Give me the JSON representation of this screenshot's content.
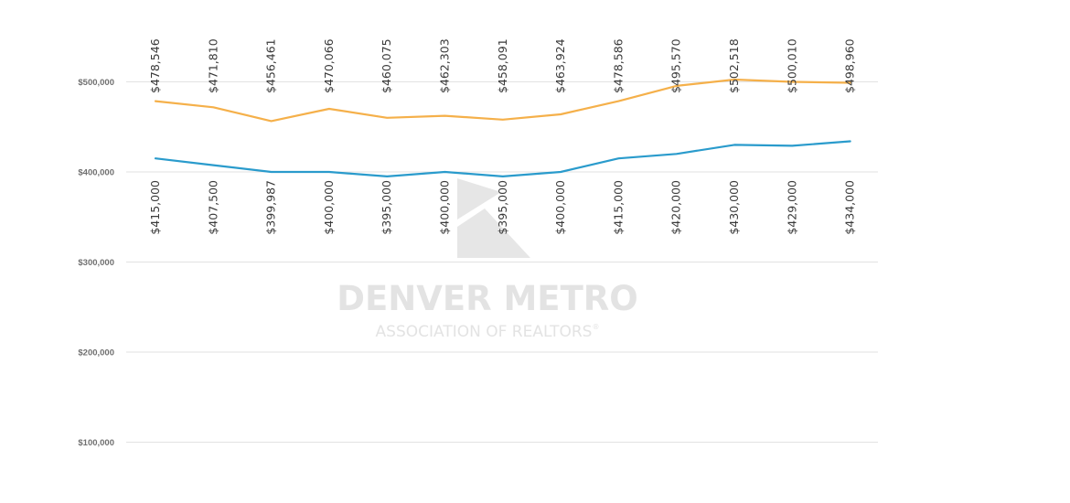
{
  "chart_data": {
    "type": "line",
    "title": "",
    "xlabel": "",
    "ylabel": "",
    "ylim": [
      0,
      500000
    ],
    "y_ticks": [
      {
        "value": 100000,
        "label": "$100,000"
      },
      {
        "value": 200000,
        "label": "$200,000"
      },
      {
        "value": 300000,
        "label": "$300,000"
      },
      {
        "value": 400000,
        "label": "$400,000"
      },
      {
        "value": 500000,
        "label": "$500,000"
      }
    ],
    "grid": true,
    "legend": "none",
    "series": [
      {
        "color": "#f5b04a",
        "label_position": "above",
        "values": [
          478546,
          471810,
          456461,
          470066,
          460075,
          462303,
          458091,
          463924,
          478586,
          495570,
          502518,
          500010,
          498960
        ],
        "labels": [
          "$478,546",
          "$471,810",
          "$456,461",
          "$470,066",
          "$460,075",
          "$462,303",
          "$458,091",
          "$463,924",
          "$478,586",
          "$495,570",
          "$502,518",
          "$500,010",
          "$498,960"
        ]
      },
      {
        "color": "#2a9bcc",
        "label_position": "below",
        "values": [
          415000,
          407500,
          399987,
          400000,
          395000,
          400000,
          395000,
          400000,
          415000,
          420000,
          430000,
          429000,
          434000
        ],
        "labels": [
          "$415,000",
          "$407,500",
          "$399,987",
          "$400,000",
          "$395,000",
          "$400,000",
          "$395,000",
          "$400,000",
          "$415,000",
          "$420,000",
          "$430,000",
          "$429,000",
          "$434,000"
        ]
      }
    ]
  },
  "watermark": {
    "line1": "DENVER METRO",
    "line2": "ASSOCIATION OF REALTORS",
    "registered_mark": "®",
    "color": "#e3e3e3"
  }
}
